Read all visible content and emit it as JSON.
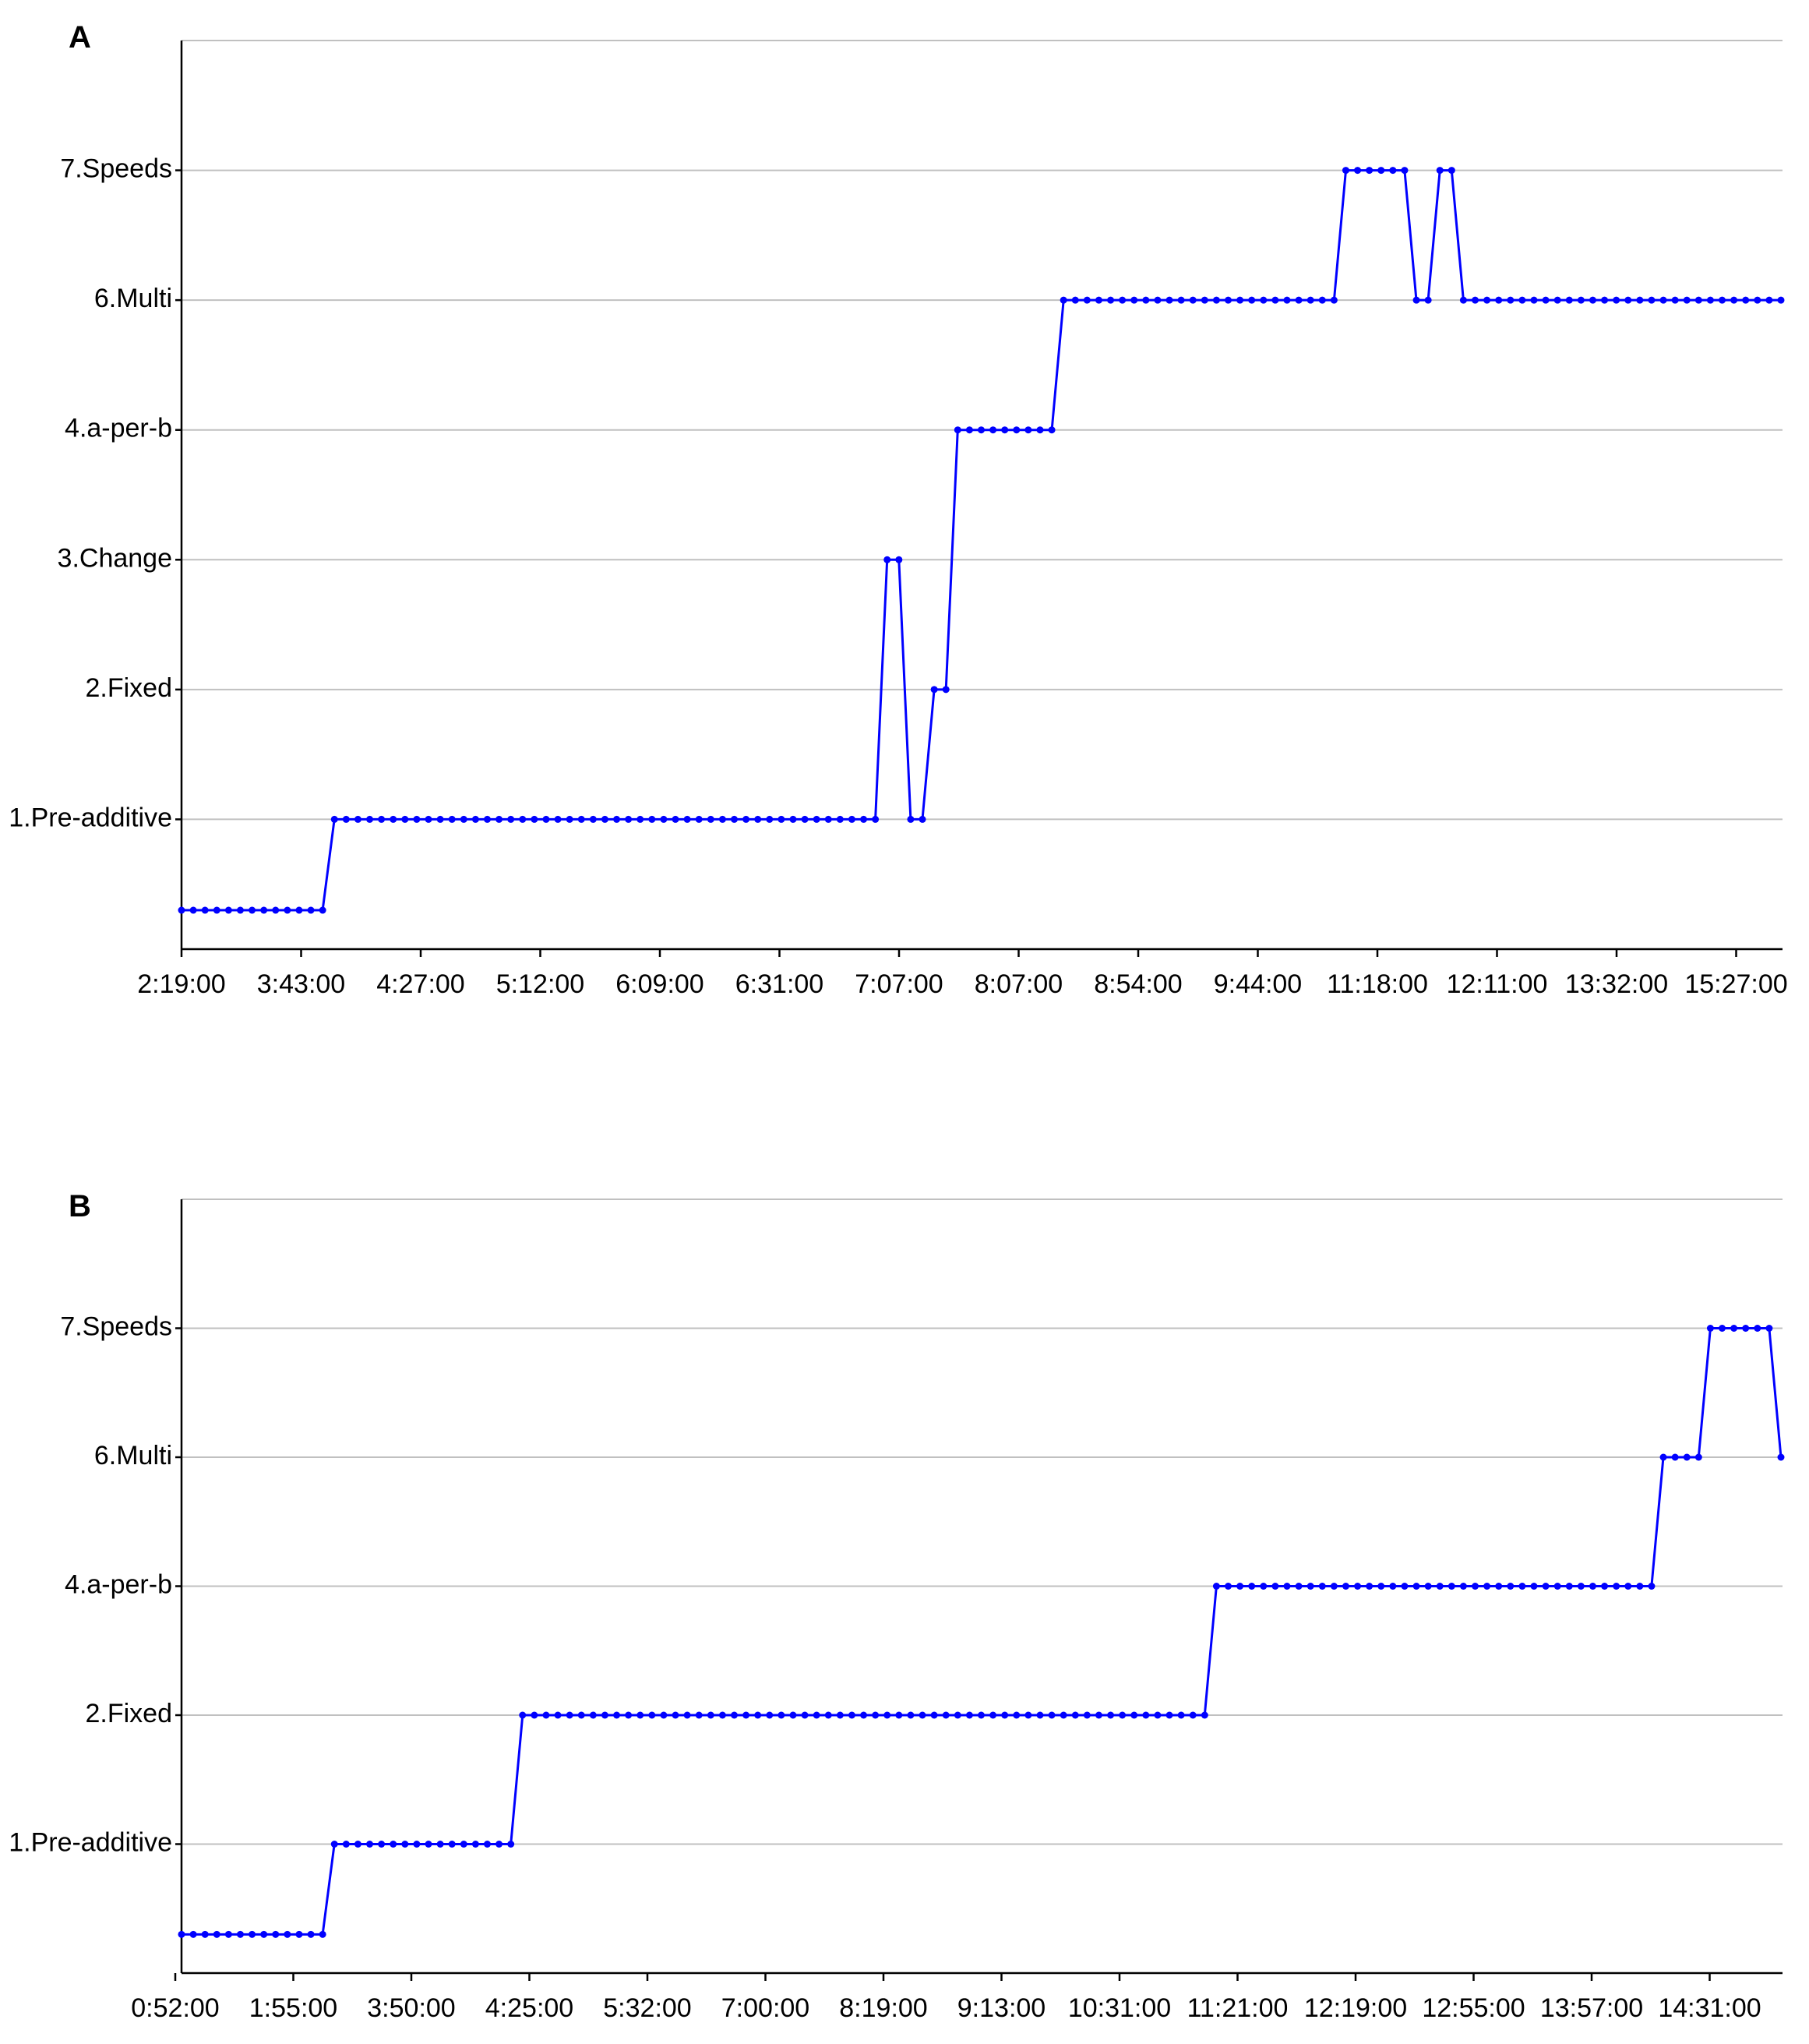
{
  "chart_data": [
    {
      "panel": "A",
      "type": "line",
      "y_categories": [
        "",
        "1.Pre-additive",
        "2.Fixed",
        "3.Change",
        "4.a-per-b",
        "6.Multi",
        "7.Speeds"
      ],
      "y_levels": [
        0.3,
        1,
        2,
        3,
        4,
        5,
        6
      ],
      "ylim": [
        0,
        7
      ],
      "grid": true,
      "x_tick_labels": [
        "2:19:00",
        "3:43:00",
        "4:27:00",
        "5:12:00",
        "6:09:00",
        "6:31:00",
        "7:07:00",
        "8:07:00",
        "8:54:00",
        "9:44:00",
        "11:18:00",
        "12:11:00",
        "13:32:00",
        "15:27:00"
      ],
      "x_count": 137,
      "segments": [
        {
          "from": 0,
          "to": 12,
          "value": 0.3
        },
        {
          "from": 13,
          "to": 59,
          "value": 1
        },
        {
          "from": 60,
          "to": 61,
          "value": 3
        },
        {
          "from": 62,
          "to": 63,
          "value": 1
        },
        {
          "from": 64,
          "to": 65,
          "value": 2
        },
        {
          "from": 66,
          "to": 74,
          "value": 4
        },
        {
          "from": 75,
          "to": 98,
          "value": 5
        },
        {
          "from": 99,
          "to": 104,
          "value": 6
        },
        {
          "from": 105,
          "to": 106,
          "value": 5
        },
        {
          "from": 107,
          "to": 108,
          "value": 6
        },
        {
          "from": 109,
          "to": 136,
          "value": 5
        }
      ]
    },
    {
      "panel": "B",
      "type": "line",
      "y_categories": [
        "",
        "1.Pre-additive",
        "2.Fixed",
        "4.a-per-b",
        "6.Multi",
        "7.Speeds"
      ],
      "y_levels": [
        0.3,
        1,
        2,
        3,
        4,
        5
      ],
      "ylim": [
        0,
        6
      ],
      "grid": true,
      "x_tick_labels": [
        "0:52:00",
        "1:55:00",
        "3:50:00",
        "4:25:00",
        "5:32:00",
        "7:00:00",
        "8:19:00",
        "9:13:00",
        "10:31:00",
        "11:21:00",
        "12:19:00",
        "12:55:00",
        "13:57:00",
        "14:31:00"
      ],
      "x_count": 137,
      "segments": [
        {
          "from": 0,
          "to": 12,
          "value": 0.3
        },
        {
          "from": 13,
          "to": 28,
          "value": 1
        },
        {
          "from": 29,
          "to": 87,
          "value": 2
        },
        {
          "from": 88,
          "to": 125,
          "value": 3
        },
        {
          "from": 126,
          "to": 129,
          "value": 4
        },
        {
          "from": 130,
          "to": 135,
          "value": 5
        },
        {
          "from": 136,
          "to": 136,
          "value": 4
        }
      ]
    }
  ],
  "panels": {
    "A": {
      "label": "A"
    },
    "B": {
      "label": "B"
    }
  }
}
